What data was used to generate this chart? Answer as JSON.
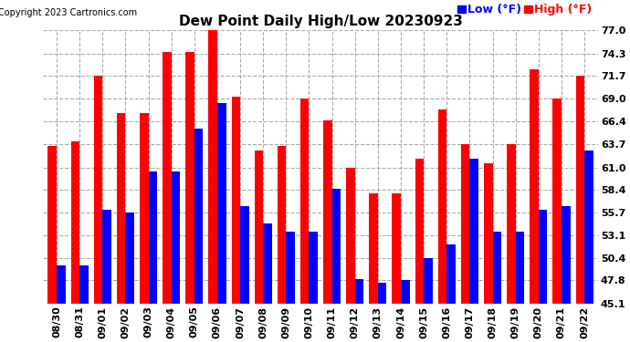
{
  "title": "Dew Point Daily High/Low 20230923",
  "copyright": "Copyright 2023 Cartronics.com",
  "legend_low": "Low (°F)",
  "legend_high": "High (°F)",
  "low_color": "blue",
  "high_color": "red",
  "plot_bg_color": "#ffffff",
  "fig_bg_color": "#ffffff",
  "ylim": [
    45.1,
    77.0
  ],
  "yticks": [
    45.1,
    47.8,
    50.4,
    53.1,
    55.7,
    58.4,
    61.0,
    63.7,
    66.4,
    69.0,
    71.7,
    74.3,
    77.0
  ],
  "categories": [
    "08/30",
    "08/31",
    "09/01",
    "09/02",
    "09/03",
    "09/04",
    "09/05",
    "09/06",
    "09/07",
    "09/08",
    "09/09",
    "09/10",
    "09/11",
    "09/12",
    "09/13",
    "09/14",
    "09/15",
    "09/16",
    "09/17",
    "09/18",
    "09/19",
    "09/20",
    "09/21",
    "09/22"
  ],
  "high_values": [
    63.5,
    64.0,
    71.7,
    67.3,
    67.3,
    74.5,
    74.5,
    77.0,
    69.3,
    63.0,
    63.5,
    69.0,
    66.5,
    61.0,
    58.0,
    58.0,
    62.0,
    67.8,
    63.7,
    61.5,
    63.7,
    72.5,
    69.0,
    71.7
  ],
  "low_values": [
    49.5,
    49.5,
    56.0,
    55.7,
    60.5,
    60.5,
    65.5,
    68.5,
    56.5,
    54.5,
    53.5,
    53.5,
    58.5,
    48.0,
    47.5,
    47.8,
    50.4,
    52.0,
    62.0,
    53.5,
    53.5,
    56.0,
    56.5,
    63.0
  ]
}
